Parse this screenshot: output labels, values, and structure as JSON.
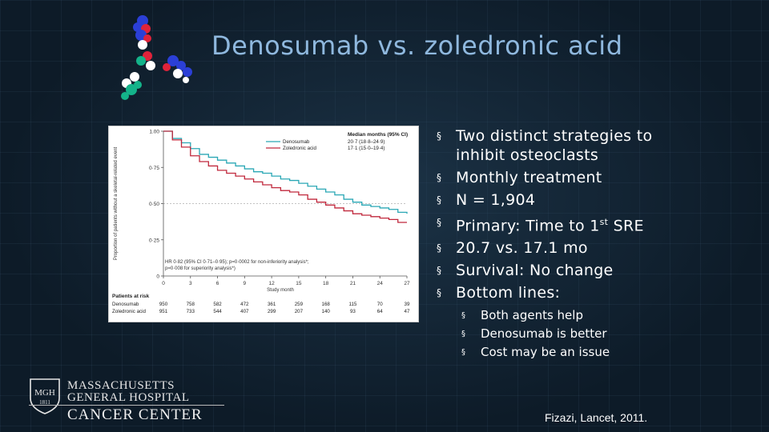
{
  "slide": {
    "title": "Denosumab vs. zoledronic acid",
    "bullets": [
      {
        "text": "Two distinct strategies to inhibit osteoclasts"
      },
      {
        "text": "Monthly treatment"
      },
      {
        "text": "N = 1,904"
      },
      {
        "pre": "Primary: Time to 1",
        "sup": "st",
        "post": " SRE"
      },
      {
        "text": "20.7 vs. 17.1 mo"
      },
      {
        "text": "Survival: No change"
      },
      {
        "text": "Bottom lines:"
      }
    ],
    "sub_bullets": [
      "Both agents help",
      "Denosumab is better",
      "Cost may be an issue"
    ],
    "bullet_marker": "§",
    "citation": "Fizazi, Lancet, 2011.",
    "logo": {
      "shield_lines": [
        "MGH",
        "1811"
      ],
      "line1": "MASSACHUSETTS",
      "line2": "GENERAL HOSPITAL",
      "line3": "CANCER CENTER"
    }
  },
  "colors": {
    "title": "#8fb8de",
    "denosumab": "#2aa7b5",
    "zoledronic": "#c0283c",
    "background": "#0d1b28"
  },
  "chart_data": {
    "type": "line",
    "ylabel": "Proportion of patients without a skeletal-related event",
    "xlabel": "Study month",
    "xlim": [
      0,
      27
    ],
    "ylim": [
      0,
      1
    ],
    "x_ticks": [
      "0",
      "3",
      "6",
      "9",
      "12",
      "15",
      "18",
      "21",
      "24",
      "27"
    ],
    "y_ticks": [
      "0",
      "0·25",
      "0·50",
      "0·75",
      "1.00"
    ],
    "legend_title": "Median months (95% CI)",
    "series": [
      {
        "name": "Denosumab",
        "median": "20·7 (18·8–24·9)",
        "x": [
          0,
          1,
          2,
          3,
          4,
          5,
          6,
          7,
          8,
          9,
          10,
          11,
          12,
          13,
          14,
          15,
          16,
          17,
          18,
          19,
          20,
          21,
          22,
          23,
          24,
          25,
          26,
          27
        ],
        "y": [
          1.0,
          0.95,
          0.92,
          0.88,
          0.84,
          0.82,
          0.8,
          0.78,
          0.76,
          0.74,
          0.72,
          0.71,
          0.69,
          0.67,
          0.66,
          0.64,
          0.62,
          0.6,
          0.58,
          0.56,
          0.53,
          0.51,
          0.49,
          0.48,
          0.47,
          0.46,
          0.44,
          0.43
        ]
      },
      {
        "name": "Zoledronic acid",
        "median": "17·1 (15·0–19·4)",
        "x": [
          0,
          1,
          2,
          3,
          4,
          5,
          6,
          7,
          8,
          9,
          10,
          11,
          12,
          13,
          14,
          15,
          16,
          17,
          18,
          19,
          20,
          21,
          22,
          23,
          24,
          25,
          26,
          27
        ],
        "y": [
          1.0,
          0.94,
          0.89,
          0.83,
          0.79,
          0.76,
          0.73,
          0.71,
          0.69,
          0.67,
          0.65,
          0.63,
          0.61,
          0.59,
          0.58,
          0.56,
          0.53,
          0.51,
          0.49,
          0.47,
          0.45,
          0.43,
          0.42,
          0.41,
          0.4,
          0.39,
          0.37,
          0.37
        ]
      }
    ],
    "reference_line_y": 0.5,
    "annotation_lines": [
      "HR 0·82 (95% CI 0·71–0·95); p=0·0002 for non-inferiority analysis*;",
      "p=0·008 for superiority analysis*)"
    ],
    "risk_table": {
      "title": "Patients at risk",
      "rows": [
        {
          "name": "Denosumab",
          "values": [
            "950",
            "758",
            "582",
            "472",
            "361",
            "259",
            "168",
            "115",
            "70",
            "39"
          ]
        },
        {
          "name": "Zoledronic acid",
          "values": [
            "951",
            "733",
            "544",
            "407",
            "299",
            "207",
            "140",
            "93",
            "64",
            "47"
          ]
        }
      ]
    }
  }
}
